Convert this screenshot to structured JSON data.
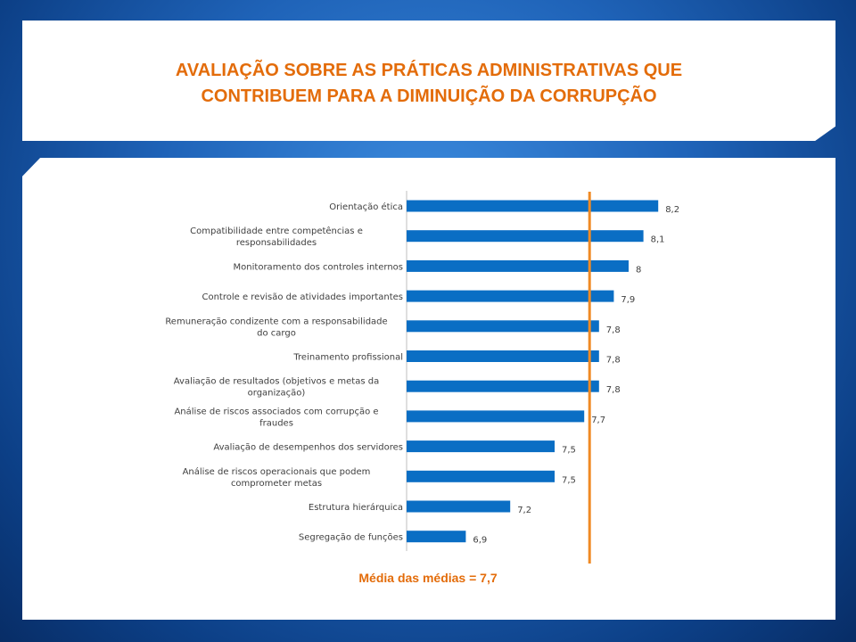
{
  "title": "AVALIAÇÃO SOBRE AS PRÁTICAS ADMINISTRATIVAS QUE\nCONTRIBUEM PARA A DIMINUIÇÃO DA CORRUPÇÃO",
  "footer_note": "Média das médias = 7,7",
  "colors": {
    "bar": "#0a6ec4",
    "average_line": "#f08a24",
    "title": "#e36c0a",
    "text": "#404040"
  },
  "chart_data": {
    "type": "bar",
    "orientation": "horizontal",
    "categories": [
      "Orientação ética",
      "Compatibilidade entre competências e\nresponsabilidades",
      "Monitoramento dos controles internos",
      "Controle e revisão de atividades importantes",
      "Remuneração condizente com a responsabilidade\ndo cargo",
      "Treinamento profissional",
      "Avaliação de resultados (objetivos e metas da\norganização)",
      "Análise de riscos associados com corrupção e\nfraudes",
      "Avaliação de desempenhos dos servidores",
      "Análise de riscos operacionais que podem\ncomprometer metas",
      "Estrutura hierárquica",
      "Segregação de funções"
    ],
    "values": [
      8.2,
      8.1,
      8.0,
      7.9,
      7.8,
      7.8,
      7.8,
      7.7,
      7.5,
      7.5,
      7.2,
      6.9
    ],
    "value_labels": [
      "8,2",
      "8,1",
      "8",
      "7,9",
      "7,8",
      "7,8",
      "7,8",
      "7,7",
      "7,5",
      "7,5",
      "7,2",
      "6,9"
    ],
    "average": 7.7,
    "xlim": [
      6.5,
      8.5
    ]
  }
}
